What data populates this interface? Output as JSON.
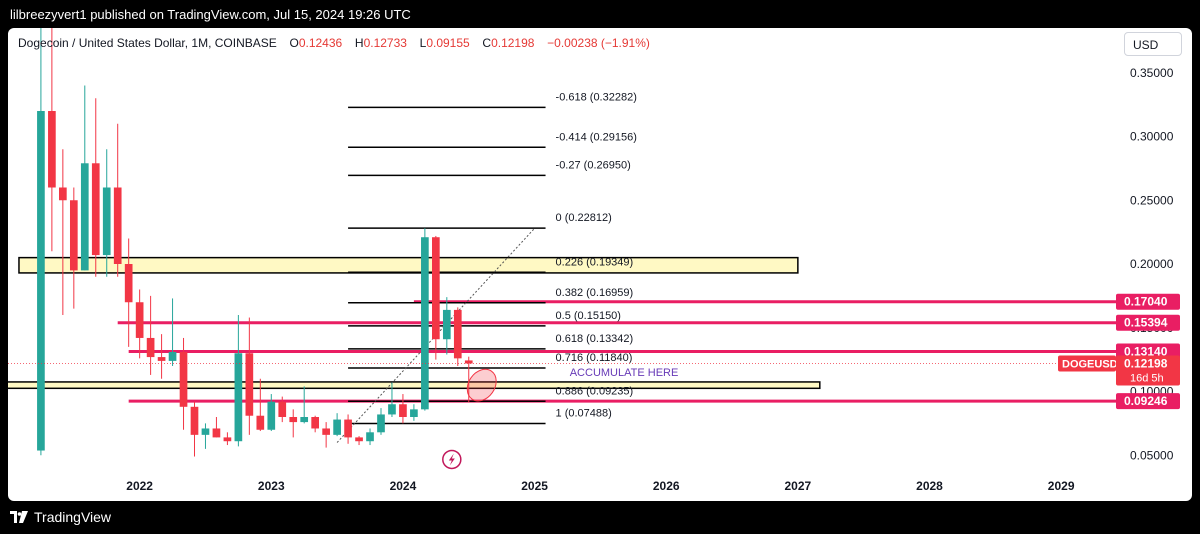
{
  "header": {
    "publisher": "lilbreezyvert1 published on TradingView.com, Jul 15, 2024 19:26 UTC"
  },
  "legend": {
    "symbol": "Dogecoin / United States Dollar, 1M, COINBASE",
    "o_label": "O",
    "o_value": "0.12436",
    "h_label": "H",
    "h_value": "0.12733",
    "l_label": "L",
    "l_value": "0.09155",
    "c_label": "C",
    "c_value": "0.12198",
    "change": "−0.00238 (−1.91%)"
  },
  "currency_button": "USD",
  "footer": {
    "brand": "TradingView"
  },
  "colors": {
    "up": "#26a69a",
    "down": "#f23645",
    "level_line": "#e91e63",
    "zone_fill": "#fff9c4",
    "accumulate_text": "#673ab7"
  },
  "chart_data": {
    "type": "candlestick",
    "timeframe": "1M",
    "x_ticks": [
      "2022",
      "2023",
      "2024",
      "2025",
      "2026",
      "2027",
      "2028",
      "2029"
    ],
    "y_ticks": [
      "0.05000",
      "0.10000",
      "0.15000",
      "0.20000",
      "0.25000",
      "0.30000",
      "0.35000"
    ],
    "ylim": [
      0.04,
      0.36
    ],
    "xlim": [
      "2021-01",
      "2029-06"
    ],
    "candles": [
      {
        "t": "2021-04",
        "o": 0.0537,
        "h": 0.45,
        "l": 0.05,
        "c": 0.32
      },
      {
        "t": "2021-05",
        "o": 0.32,
        "h": 0.74,
        "l": 0.21,
        "c": 0.26
      },
      {
        "t": "2021-06",
        "o": 0.26,
        "h": 0.29,
        "l": 0.16,
        "c": 0.25
      },
      {
        "t": "2021-07",
        "o": 0.25,
        "h": 0.26,
        "l": 0.165,
        "c": 0.195
      },
      {
        "t": "2021-08",
        "o": 0.195,
        "h": 0.34,
        "l": 0.195,
        "c": 0.279
      },
      {
        "t": "2021-09",
        "o": 0.279,
        "h": 0.33,
        "l": 0.19,
        "c": 0.207
      },
      {
        "t": "2021-10",
        "o": 0.207,
        "h": 0.29,
        "l": 0.19,
        "c": 0.26
      },
      {
        "t": "2021-11",
        "o": 0.26,
        "h": 0.31,
        "l": 0.19,
        "c": 0.2
      },
      {
        "t": "2021-12",
        "o": 0.2,
        "h": 0.22,
        "l": 0.135,
        "c": 0.17
      },
      {
        "t": "2022-01",
        "o": 0.17,
        "h": 0.18,
        "l": 0.126,
        "c": 0.142
      },
      {
        "t": "2022-02",
        "o": 0.142,
        "h": 0.175,
        "l": 0.113,
        "c": 0.127
      },
      {
        "t": "2022-03",
        "o": 0.127,
        "h": 0.145,
        "l": 0.11,
        "c": 0.124
      },
      {
        "t": "2022-04",
        "o": 0.124,
        "h": 0.173,
        "l": 0.12,
        "c": 0.131
      },
      {
        "t": "2022-05",
        "o": 0.131,
        "h": 0.142,
        "l": 0.07,
        "c": 0.088
      },
      {
        "t": "2022-06",
        "o": 0.088,
        "h": 0.092,
        "l": 0.049,
        "c": 0.066
      },
      {
        "t": "2022-07",
        "o": 0.066,
        "h": 0.075,
        "l": 0.055,
        "c": 0.071
      },
      {
        "t": "2022-08",
        "o": 0.071,
        "h": 0.08,
        "l": 0.064,
        "c": 0.064
      },
      {
        "t": "2022-09",
        "o": 0.064,
        "h": 0.068,
        "l": 0.058,
        "c": 0.061
      },
      {
        "t": "2022-10",
        "o": 0.061,
        "h": 0.16,
        "l": 0.057,
        "c": 0.13
      },
      {
        "t": "2022-11",
        "o": 0.13,
        "h": 0.158,
        "l": 0.066,
        "c": 0.081
      },
      {
        "t": "2022-12",
        "o": 0.081,
        "h": 0.11,
        "l": 0.069,
        "c": 0.07
      },
      {
        "t": "2023-01",
        "o": 0.07,
        "h": 0.098,
        "l": 0.069,
        "c": 0.092
      },
      {
        "t": "2023-02",
        "o": 0.092,
        "h": 0.096,
        "l": 0.076,
        "c": 0.08
      },
      {
        "t": "2023-03",
        "o": 0.08,
        "h": 0.086,
        "l": 0.064,
        "c": 0.076
      },
      {
        "t": "2023-04",
        "o": 0.076,
        "h": 0.104,
        "l": 0.075,
        "c": 0.08
      },
      {
        "t": "2023-05",
        "o": 0.08,
        "h": 0.081,
        "l": 0.068,
        "c": 0.071
      },
      {
        "t": "2023-06",
        "o": 0.071,
        "h": 0.076,
        "l": 0.056,
        "c": 0.066
      },
      {
        "t": "2023-07",
        "o": 0.066,
        "h": 0.083,
        "l": 0.065,
        "c": 0.078
      },
      {
        "t": "2023-08",
        "o": 0.078,
        "h": 0.082,
        "l": 0.059,
        "c": 0.064
      },
      {
        "t": "2023-09",
        "o": 0.064,
        "h": 0.065,
        "l": 0.058,
        "c": 0.061
      },
      {
        "t": "2023-10",
        "o": 0.061,
        "h": 0.071,
        "l": 0.058,
        "c": 0.068
      },
      {
        "t": "2023-11",
        "o": 0.068,
        "h": 0.087,
        "l": 0.066,
        "c": 0.082
      },
      {
        "t": "2023-12",
        "o": 0.082,
        "h": 0.107,
        "l": 0.08,
        "c": 0.09
      },
      {
        "t": "2024-01",
        "o": 0.09,
        "h": 0.098,
        "l": 0.075,
        "c": 0.08
      },
      {
        "t": "2024-02",
        "o": 0.08,
        "h": 0.09,
        "l": 0.077,
        "c": 0.086
      },
      {
        "t": "2024-03",
        "o": 0.086,
        "h": 0.228,
        "l": 0.085,
        "c": 0.221
      },
      {
        "t": "2024-04",
        "o": 0.221,
        "h": 0.222,
        "l": 0.125,
        "c": 0.141
      },
      {
        "t": "2024-05",
        "o": 0.141,
        "h": 0.174,
        "l": 0.129,
        "c": 0.164
      },
      {
        "t": "2024-06",
        "o": 0.164,
        "h": 0.166,
        "l": 0.12,
        "c": 0.126
      },
      {
        "t": "2024-07",
        "o": 0.12436,
        "h": 0.12733,
        "l": 0.09155,
        "c": 0.12198
      }
    ],
    "fib_levels": [
      {
        "label": "-0.618 (0.32282)",
        "value": 0.32282
      },
      {
        "label": "-0.414 (0.29156)",
        "value": 0.29156
      },
      {
        "label": "-0.27 (0.26950)",
        "value": 0.2695
      },
      {
        "label": "0 (0.22812)",
        "value": 0.22812
      },
      {
        "label": "0.226 (0.19349)",
        "value": 0.19349
      },
      {
        "label": "0.382 (0.16959)",
        "value": 0.16959
      },
      {
        "label": "0.5 (0.15150)",
        "value": 0.1515
      },
      {
        "label": "0.618 (0.13342)",
        "value": 0.13342
      },
      {
        "label": "0.716 (0.11840)",
        "value": 0.1184
      },
      {
        "label": "0.886 (0.09235)",
        "value": 0.09235
      },
      {
        "label": "1 (0.07488)",
        "value": 0.07488
      }
    ],
    "fib_range": {
      "start": "2023-08",
      "end": "2025-02"
    },
    "horizontal_lines": [
      {
        "value": 0.1704,
        "label": "0.17040",
        "start": "2024-02"
      },
      {
        "value": 0.15394,
        "label": "0.15394",
        "start": "2021-11"
      },
      {
        "value": 0.1314,
        "label": "0.13140",
        "start": "2021-12"
      },
      {
        "value": 0.09246,
        "label": "0.09246",
        "start": "2021-12"
      }
    ],
    "zones": [
      {
        "top": 0.205,
        "bottom": 0.193,
        "start": "2021-02",
        "end": "2027-01"
      },
      {
        "top": 0.1075,
        "bottom": 0.1025,
        "start": "2020-12",
        "end": "2027-03"
      }
    ],
    "trend_line": {
      "x1": "2023-07",
      "y1": 0.06,
      "x2": "2025-01",
      "y2": 0.228
    },
    "annotation": "ACCUMULATE HERE",
    "ellipse": {
      "t": "2024-08",
      "value": 0.105
    },
    "last_price": {
      "symbol": "DOGEUSD",
      "value": "0.12198",
      "countdown": "16d 5h",
      "numeric": 0.12198
    }
  }
}
